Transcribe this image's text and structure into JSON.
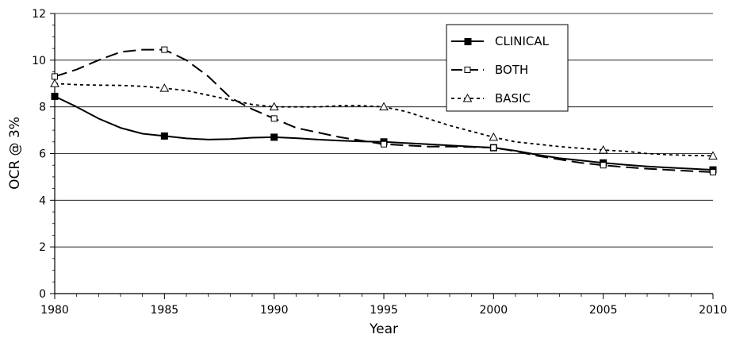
{
  "chart_data": {
    "type": "line",
    "xlabel": "Year",
    "ylabel": "OCR @ 3%",
    "xlim": [
      1980,
      2010
    ],
    "ylim": [
      0,
      12
    ],
    "x_ticks": [
      1980,
      1985,
      1990,
      1995,
      2000,
      2005,
      2010
    ],
    "y_ticks": [
      0,
      2,
      4,
      6,
      8,
      10,
      12
    ],
    "grid": "horizontal",
    "legend_position": "top-right",
    "series": [
      {
        "name": "CLINICAL",
        "line_style": "solid",
        "marker": "filled-square",
        "x": [
          1980,
          1985,
          1990,
          1995,
          2000,
          2005,
          2010
        ],
        "y": [
          8.45,
          6.75,
          6.7,
          6.5,
          6.25,
          5.6,
          5.3
        ],
        "curve_x": [
          1980,
          1981,
          1982,
          1983,
          1984,
          1985,
          1986,
          1987,
          1988,
          1989,
          1990,
          1991,
          1992,
          1993,
          1994,
          1995,
          1996,
          1997,
          1998,
          1999,
          2000,
          2001,
          2002,
          2003,
          2004,
          2005,
          2006,
          2007,
          2008,
          2009,
          2010
        ],
        "curve_y": [
          8.45,
          8.0,
          7.5,
          7.1,
          6.85,
          6.75,
          6.65,
          6.6,
          6.62,
          6.68,
          6.7,
          6.66,
          6.6,
          6.55,
          6.52,
          6.5,
          6.45,
          6.4,
          6.35,
          6.3,
          6.25,
          6.12,
          5.95,
          5.8,
          5.7,
          5.6,
          5.52,
          5.45,
          5.4,
          5.35,
          5.3
        ]
      },
      {
        "name": "BOTH",
        "line_style": "long-dash",
        "marker": "open-square",
        "x": [
          1980,
          1985,
          1990,
          1995,
          2000,
          2005,
          2010
        ],
        "y": [
          9.3,
          10.45,
          7.5,
          6.4,
          6.25,
          5.5,
          5.2
        ],
        "curve_x": [
          1980,
          1981,
          1982,
          1983,
          1984,
          1985,
          1986,
          1987,
          1988,
          1989,
          1990,
          1991,
          1992,
          1993,
          1994,
          1995,
          1996,
          1997,
          1998,
          1999,
          2000,
          2001,
          2002,
          2003,
          2004,
          2005,
          2006,
          2007,
          2008,
          2009,
          2010
        ],
        "curve_y": [
          9.3,
          9.6,
          10.0,
          10.35,
          10.45,
          10.45,
          10.0,
          9.3,
          8.4,
          7.9,
          7.5,
          7.1,
          6.9,
          6.7,
          6.55,
          6.4,
          6.35,
          6.3,
          6.3,
          6.28,
          6.25,
          6.1,
          5.9,
          5.75,
          5.6,
          5.5,
          5.42,
          5.35,
          5.3,
          5.25,
          5.2
        ]
      },
      {
        "name": "BASIC",
        "line_style": "short-dash",
        "marker": "open-triangle",
        "x": [
          1980,
          1985,
          1990,
          1995,
          2000,
          2005,
          2010
        ],
        "y": [
          9.0,
          8.8,
          8.0,
          8.0,
          6.7,
          6.15,
          5.9
        ],
        "curve_x": [
          1980,
          1981,
          1982,
          1983,
          1984,
          1985,
          1986,
          1987,
          1988,
          1989,
          1990,
          1991,
          1992,
          1993,
          1994,
          1995,
          1996,
          1997,
          1998,
          1999,
          2000,
          2001,
          2002,
          2003,
          2004,
          2005,
          2006,
          2007,
          2008,
          2009,
          2010
        ],
        "curve_y": [
          9.0,
          8.95,
          8.93,
          8.92,
          8.88,
          8.8,
          8.7,
          8.5,
          8.3,
          8.1,
          8.0,
          8.0,
          8.0,
          8.05,
          8.05,
          8.0,
          7.8,
          7.5,
          7.2,
          6.95,
          6.7,
          6.5,
          6.4,
          6.3,
          6.22,
          6.15,
          6.1,
          6.0,
          5.95,
          5.92,
          5.9
        ]
      }
    ]
  }
}
